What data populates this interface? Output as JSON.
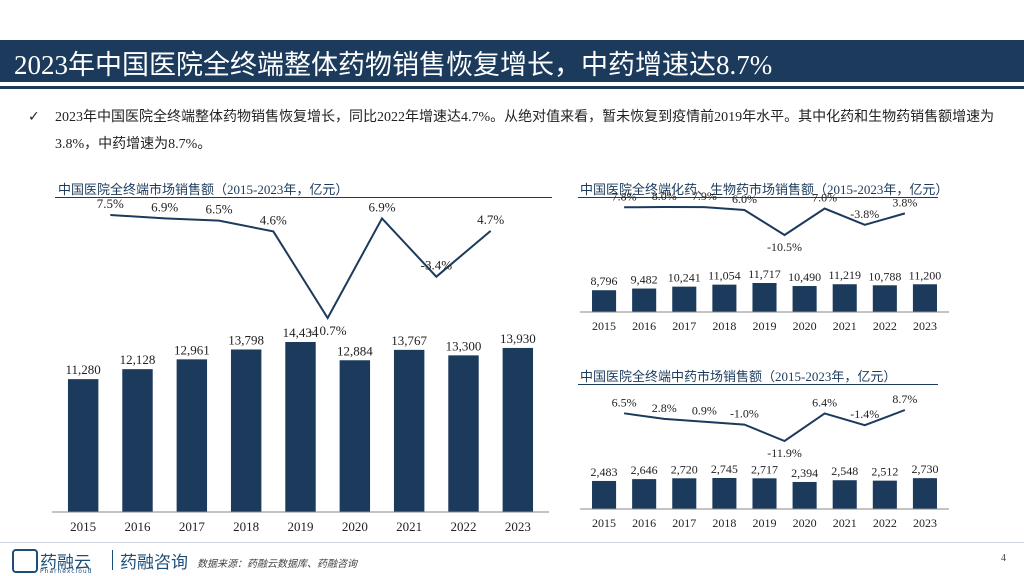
{
  "header": {
    "title": "2023年中国医院全终端整体药物销售恢复增长，中药增速达8.7%"
  },
  "summary": "2023年中国医院全终端整体药物销售恢复增长，同比2022年增速达4.7%。从绝对值来看，暂未恢复到疫情前2019年水平。其中化药和生物药销售额增速为3.8%，中药增速为8.7%。",
  "colors": {
    "bar": "#1b3a5c",
    "line": "#1b3a5c",
    "accent": "#1b3a5c"
  },
  "chart_data": [
    {
      "id": "total",
      "type": "bar+line",
      "title": "中国医院全终端市场销售额（2015-2023年，亿元）",
      "categories": [
        "2015",
        "2016",
        "2017",
        "2018",
        "2019",
        "2020",
        "2021",
        "2022",
        "2023"
      ],
      "values": [
        11280,
        12128,
        12961,
        13798,
        14434,
        12884,
        13767,
        13300,
        13930
      ],
      "value_labels": [
        "11,280",
        "12,128",
        "12,961",
        "13,798",
        "14,434",
        "12,884",
        "13,767",
        "13,300",
        "13,930"
      ],
      "growth": [
        7.5,
        6.9,
        6.5,
        4.6,
        -10.7,
        6.9,
        -3.4,
        4.7
      ],
      "growth_labels": [
        "7.5%",
        "6.9%",
        "6.5%",
        "4.6%",
        "-10.7%",
        "6.9%",
        "-3.4%",
        "4.7%"
      ]
    },
    {
      "id": "chem_bio",
      "type": "bar+line",
      "title": "中国医院全终端化药、生物药市场销售额（2015-2023年，亿元）",
      "categories": [
        "2015",
        "2016",
        "2017",
        "2018",
        "2019",
        "2020",
        "2021",
        "2022",
        "2023"
      ],
      "values": [
        8796,
        9482,
        10241,
        11054,
        11717,
        10490,
        11219,
        10788,
        11200
      ],
      "value_labels": [
        "8,796",
        "9,482",
        "10,241",
        "11,054",
        "11,717",
        "10,490",
        "11,219",
        "10,788",
        "11,200"
      ],
      "growth": [
        7.8,
        8.0,
        7.9,
        6.0,
        -10.5,
        7.0,
        -3.8,
        3.8
      ],
      "growth_labels": [
        "7.8%",
        "8.0%",
        "7.9%",
        "6.0%",
        "-10.5%",
        "7.0%",
        "-3.8%",
        "3.8%"
      ]
    },
    {
      "id": "tcm",
      "type": "bar+line",
      "title": "中国医院全终端中药市场销售额（2015-2023年，亿元）",
      "categories": [
        "2015",
        "2016",
        "2017",
        "2018",
        "2019",
        "2020",
        "2021",
        "2022",
        "2023"
      ],
      "values": [
        2483,
        2646,
        2720,
        2745,
        2717,
        2394,
        2548,
        2512,
        2730
      ],
      "value_labels": [
        "2,483",
        "2,646",
        "2,720",
        "2,745",
        "2,717",
        "2,394",
        "2,548",
        "2,512",
        "2,730"
      ],
      "growth": [
        6.5,
        2.8,
        0.9,
        -1.0,
        -11.9,
        6.4,
        -1.4,
        8.7
      ],
      "growth_labels": [
        "6.5%",
        "2.8%",
        "0.9%",
        "-1.0%",
        "-11.9%",
        "6.4%",
        "-1.4%",
        "8.7%"
      ]
    }
  ],
  "footer": {
    "logo_name": "药融云",
    "logo_sub": "Pharnexcloud",
    "logo_name2": "药融咨询",
    "source": "数据来源：药融云数据库、药融咨询",
    "page": "4"
  }
}
